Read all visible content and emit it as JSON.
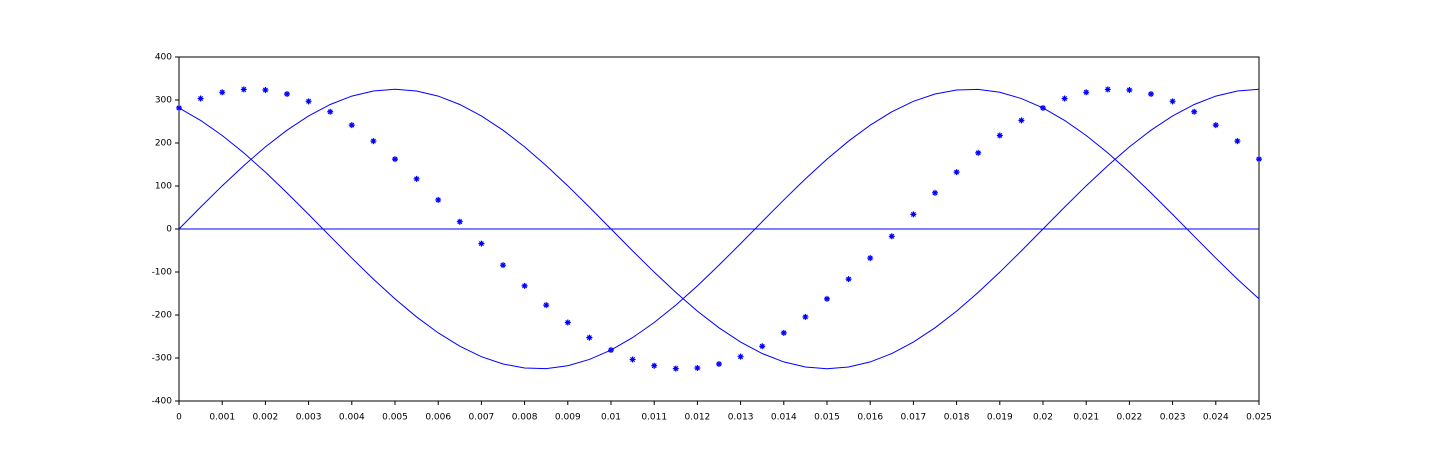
{
  "chart_data": {
    "type": "line",
    "x": [
      0,
      0.0005,
      0.001,
      0.0015,
      0.002,
      0.0025,
      0.003,
      0.0035,
      0.004,
      0.0045,
      0.005,
      0.0055,
      0.006,
      0.0065,
      0.007,
      0.0075,
      0.008,
      0.0085,
      0.009,
      0.0095,
      0.01,
      0.0105,
      0.011,
      0.0115,
      0.012,
      0.0125,
      0.013,
      0.0135,
      0.014,
      0.0145,
      0.015,
      0.0155,
      0.016,
      0.0165,
      0.017,
      0.0175,
      0.018,
      0.0185,
      0.019,
      0.0195,
      0.02,
      0.0205,
      0.021,
      0.0215,
      0.022,
      0.0225,
      0.023,
      0.0235,
      0.024,
      0.0245,
      0.025
    ],
    "series": [
      {
        "color": "#0000ff",
        "style": "line",
        "values": [
          0,
          50.8,
          100.4,
          147.5,
          191.0,
          229.8,
          262.9,
          289.6,
          309.1,
          321.0,
          325.0,
          321.0,
          309.1,
          289.6,
          262.9,
          229.8,
          191.0,
          147.5,
          100.4,
          50.8,
          0,
          -50.8,
          -100.4,
          -147.5,
          -191.0,
          -229.8,
          -262.9,
          -289.6,
          -309.1,
          -321.0,
          -325.0,
          -321.0,
          -309.1,
          -289.6,
          -262.9,
          -229.8,
          -191.0,
          -147.5,
          -100.4,
          -50.8,
          0,
          50.8,
          100.4,
          147.5,
          191.0,
          229.8,
          262.9,
          289.6,
          309.1,
          321.0,
          325.0
        ]
      },
      {
        "color": "#0000ff",
        "style": "line",
        "values": [
          281.5,
          252.6,
          217.5,
          177.0,
          132.2,
          84.1,
          34.0,
          -17.0,
          -67.6,
          -116.5,
          -162.5,
          -204.5,
          -241.5,
          -272.6,
          -296.9,
          -313.9,
          -323.2,
          -324.6,
          -317.9,
          -303.4,
          -281.5,
          -252.6,
          -217.5,
          -177.0,
          -132.2,
          -84.1,
          -34.0,
          17.0,
          67.6,
          116.5,
          162.5,
          204.5,
          241.5,
          272.6,
          296.9,
          313.9,
          323.2,
          324.6,
          317.9,
          303.4,
          281.5,
          252.6,
          217.5,
          177.0,
          132.2,
          84.1,
          34.0,
          -17.0,
          -67.6,
          -116.5,
          -162.5
        ]
      },
      {
        "color": "#0000ff",
        "style": "line",
        "values": [
          0,
          0,
          0,
          0,
          0,
          0,
          0,
          0,
          0,
          0,
          0,
          0,
          0,
          0,
          0,
          0,
          0,
          0,
          0,
          0,
          0,
          0,
          0,
          0,
          0,
          0,
          0,
          0,
          0,
          0,
          0,
          0,
          0,
          0,
          0,
          0,
          0,
          0,
          0,
          0,
          0,
          0,
          0,
          0,
          0,
          0,
          0,
          0,
          0,
          0,
          0
        ]
      },
      {
        "color": "#0000ff",
        "style": "star",
        "values": [
          281.5,
          303.4,
          317.9,
          324.6,
          323.2,
          313.9,
          296.9,
          272.6,
          241.5,
          204.5,
          162.5,
          116.5,
          67.6,
          17.0,
          -34.0,
          -84.1,
          -132.2,
          -177.0,
          -217.5,
          -252.6,
          -281.5,
          -303.4,
          -317.9,
          -324.6,
          -323.2,
          -313.9,
          -296.9,
          -272.6,
          -241.5,
          -204.5,
          -162.5,
          -116.5,
          -67.6,
          -17.0,
          34.0,
          84.1,
          132.2,
          177.0,
          217.5,
          252.6,
          281.5,
          303.4,
          317.9,
          324.6,
          323.2,
          313.9,
          296.9,
          272.6,
          241.5,
          204.5,
          162.5
        ]
      }
    ],
    "xlim": [
      0,
      0.025
    ],
    "xticks": [
      0,
      0.001,
      0.002,
      0.003,
      0.004,
      0.005,
      0.006,
      0.007,
      0.008,
      0.009,
      0.01,
      0.011,
      0.012,
      0.013,
      0.014,
      0.015,
      0.016,
      0.017,
      0.018,
      0.019,
      0.02,
      0.021,
      0.022,
      0.023,
      0.024,
      0.025
    ],
    "ylim": [
      -400,
      400
    ],
    "yticks": [
      -400,
      -300,
      -200,
      -100,
      0,
      100,
      200,
      300,
      400
    ]
  }
}
